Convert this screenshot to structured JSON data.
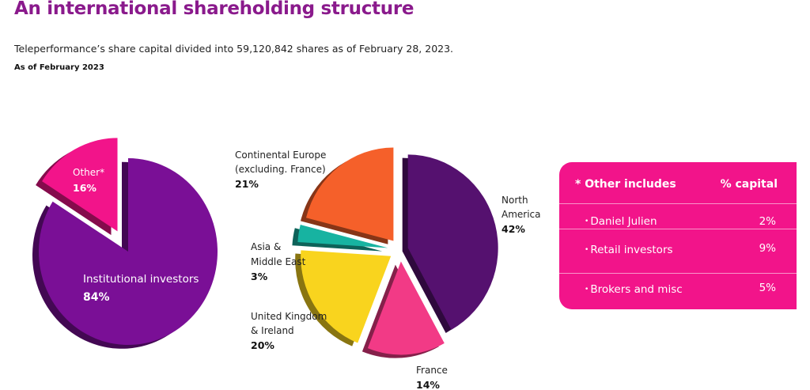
{
  "page": {
    "title": "An international shareholding structure",
    "subtitle": "Teleperformance’s share capital divided into 59,120,842 shares as of February 28, 2023.",
    "as_of": "As of February 2023"
  },
  "chart_data": [
    {
      "type": "pie",
      "title": "",
      "slices": [
        {
          "label": "Institutional investors",
          "value": 84,
          "display": "84%",
          "color": "#7a0f96"
        },
        {
          "label": "Other*",
          "value": 16,
          "display": "16%",
          "color": "#f2148a"
        }
      ]
    },
    {
      "type": "pie",
      "title": "",
      "slices": [
        {
          "label": "North America",
          "value": 42,
          "display": "42%",
          "color": "#55116f"
        },
        {
          "label": "France",
          "value": 14,
          "display": "14%",
          "color": "#f23a86"
        },
        {
          "label": "United Kingdom & Ireland",
          "value": 20,
          "display": "20%",
          "color": "#f9d41e"
        },
        {
          "label": "Asia & Middle East",
          "value": 3,
          "display": "3%",
          "color": "#17b3a1"
        },
        {
          "label": "Continental Europe (excluding. France)",
          "value": 21,
          "display": "21%",
          "color": "#f5602a"
        }
      ]
    }
  ],
  "labels": {
    "institutional_name": "Institutional investors",
    "institutional_pct": "84%",
    "other_name": "Other*",
    "other_pct": "16%",
    "cont_europe_line1": "Continental Europe",
    "cont_europe_line2": "(excluding. France)",
    "cont_europe_pct": "21%",
    "north_america_line1": "North",
    "north_america_line2": "America",
    "north_america_pct": "42%",
    "asia_line1": "Asia &",
    "asia_line2": "Middle East",
    "asia_pct": "3%",
    "uk_line1": "United Kingdom",
    "uk_line2": "& Ireland",
    "uk_pct": "20%",
    "france_name": "France",
    "france_pct": "14%"
  },
  "other_table": {
    "header_left": "* Other includes",
    "header_right": "% capital",
    "rows": [
      {
        "name": "Daniel Julien",
        "value": "2%"
      },
      {
        "name": "Retail investors",
        "value": "9%"
      },
      {
        "name": "Brokers and misc",
        "value": "5%"
      }
    ],
    "color": "#f2148a"
  }
}
